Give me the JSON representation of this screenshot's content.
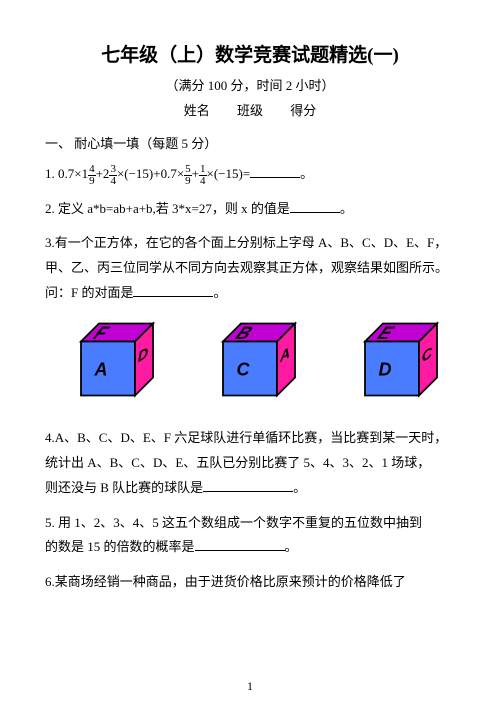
{
  "title": {
    "text": "七年级（上）数学竞赛试题精选(一)",
    "fontsize": 19
  },
  "subtitle": {
    "text": "（满分 100 分，时间 2 小时）",
    "fontsize": 13
  },
  "nameline": {
    "name": "姓名",
    "class": "班级",
    "score": "得分",
    "fontsize": 13
  },
  "section1": {
    "text": "一、 耐心填一填（每题 5 分）",
    "fontsize": 13
  },
  "q1": {
    "prefix": "1.",
    "expr_parts": [
      "0.7×1",
      "4",
      "9",
      "+2",
      "3",
      "4",
      "×(−15)+0.7×",
      "5",
      "9",
      "+",
      "1",
      "4",
      "×(−15)="
    ],
    "blank_w": 50,
    "tail": "。"
  },
  "q2": {
    "text": "2. 定义 a*b=ab+a+b,若 3*x=27，则 x 的值是",
    "blank_w": 50,
    "tail": "。"
  },
  "q3": {
    "l1": "3.有一个正方体，在它的各个面上分别标上字母 A、B、C、D、E、F，",
    "l2": "甲、乙、丙三位同学从不同方向去观察其正方体，观察结果如图所示。",
    "l3": "问：F 的对面是",
    "blank_w": 80,
    "tail": "。"
  },
  "cubes": {
    "fill_top": "#c100d4",
    "fill_front": "#4a7cff",
    "fill_side": "#ff1aa2",
    "stroke": "#000000",
    "label_color": "#000000",
    "label_font": "italic bold 18px Arial",
    "items": [
      {
        "top": "F",
        "front": "A",
        "side": "D"
      },
      {
        "top": "B",
        "front": "C",
        "side": "A"
      },
      {
        "top": "E",
        "front": "D",
        "side": "C"
      }
    ]
  },
  "q4": {
    "l1": "4.A、B、C、D、E、F 六足球队进行单循环比赛，当比赛到某一天时，",
    "l2": "统计出 A、B、C、D、E、五队已分别比赛了 5、4、3、2、1 场球，",
    "l3": "则还没与 B 队比赛的球队是",
    "blank_w": 90,
    "tail": "。"
  },
  "q5": {
    "l1": "5.  用 1、2、3、4、5 这五个数组成一个数字不重复的五位数中抽到",
    "l2": "的数是 15 的倍数的概率是",
    "blank_w": 90,
    "tail": "。"
  },
  "q6": {
    "text": "6.某商场经销一种商品，由于进货价格比原来预计的价格降低了"
  },
  "pagenum": "1",
  "body_fontsize": 13
}
